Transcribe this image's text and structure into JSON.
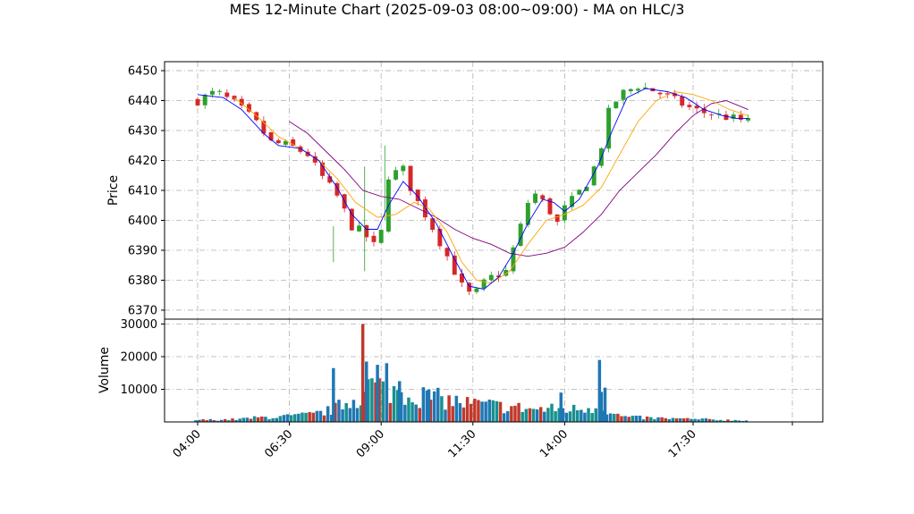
{
  "chart_data": {
    "type": "candlestick+volume",
    "title": "MES 12-Minute Chart (2025-09-03 08:00~09:00) - MA on HLC/3",
    "colors": {
      "up": "#2ca02c",
      "down": "#d62728",
      "ma_fast": "#0000ff",
      "ma_mid": "#ffa500",
      "ma_slow": "#800080",
      "vol_a": "#1f77b4",
      "vol_b": "#17908f",
      "vol_c": "#c0392b"
    },
    "price_panel": {
      "ylabel": "Price",
      "yticks": [
        6370,
        6380,
        6390,
        6400,
        6410,
        6420,
        6430,
        6440,
        6450
      ],
      "ylim": [
        6367,
        6453
      ],
      "grid": true
    },
    "volume_panel": {
      "ylabel": "Volume",
      "yticks": [
        10000,
        20000,
        30000
      ],
      "ylim": [
        0,
        31500
      ],
      "grid": true
    },
    "xticks": [
      "04:00",
      "06:30",
      "09:00",
      "11:30",
      "14:00",
      "17:30"
    ],
    "x_hours": [
      4.0,
      6.5,
      9.0,
      11.5,
      14.0,
      17.5
    ],
    "x_range_hours": [
      3.2,
      19.0
    ],
    "price_keypoints": [
      [
        4.0,
        6440
      ],
      [
        4.5,
        6443
      ],
      [
        5.0,
        6439
      ],
      [
        5.5,
        6434
      ],
      [
        6.0,
        6426
      ],
      [
        6.5,
        6425
      ],
      [
        7.0,
        6422
      ],
      [
        7.3,
        6416
      ],
      [
        7.8,
        6408
      ],
      [
        8.2,
        6398
      ],
      [
        8.5,
        6396
      ],
      [
        8.9,
        6390
      ],
      [
        9.0,
        6396
      ],
      [
        9.2,
        6415
      ],
      [
        9.6,
        6417
      ],
      [
        9.9,
        6408
      ],
      [
        10.3,
        6400
      ],
      [
        10.8,
        6388
      ],
      [
        11.2,
        6378
      ],
      [
        11.5,
        6374
      ],
      [
        11.7,
        6378
      ],
      [
        12.0,
        6381
      ],
      [
        12.4,
        6383
      ],
      [
        12.8,
        6398
      ],
      [
        13.1,
        6410
      ],
      [
        13.5,
        6405
      ],
      [
        13.8,
        6399
      ],
      [
        14.0,
        6404
      ],
      [
        14.3,
        6408
      ],
      [
        14.7,
        6414
      ],
      [
        15.0,
        6425
      ],
      [
        15.2,
        6436
      ],
      [
        15.5,
        6442
      ],
      [
        16.0,
        6445
      ],
      [
        16.5,
        6443
      ],
      [
        17.0,
        6440
      ],
      [
        17.5,
        6437
      ],
      [
        17.8,
        6436
      ],
      [
        18.2,
        6435
      ],
      [
        18.6,
        6434
      ],
      [
        19.0,
        6433
      ]
    ],
    "ma_fast": [
      [
        4.0,
        6442
      ],
      [
        4.7,
        6441
      ],
      [
        5.2,
        6437
      ],
      [
        5.8,
        6429
      ],
      [
        6.2,
        6425
      ],
      [
        6.8,
        6424
      ],
      [
        7.3,
        6420
      ],
      [
        7.8,
        6411
      ],
      [
        8.2,
        6402
      ],
      [
        8.6,
        6397
      ],
      [
        8.9,
        6397
      ],
      [
        9.2,
        6405
      ],
      [
        9.6,
        6413
      ],
      [
        10.0,
        6408
      ],
      [
        10.5,
        6399
      ],
      [
        11.0,
        6387
      ],
      [
        11.4,
        6378
      ],
      [
        11.8,
        6377
      ],
      [
        12.2,
        6381
      ],
      [
        12.6,
        6389
      ],
      [
        13.0,
        6399
      ],
      [
        13.4,
        6407
      ],
      [
        13.7,
        6406
      ],
      [
        14.0,
        6403
      ],
      [
        14.4,
        6407
      ],
      [
        14.9,
        6418
      ],
      [
        15.3,
        6430
      ],
      [
        15.7,
        6441
      ],
      [
        16.2,
        6444
      ],
      [
        16.8,
        6443
      ],
      [
        17.3,
        6441
      ],
      [
        17.8,
        6437
      ],
      [
        18.3,
        6435
      ],
      [
        18.7,
        6434
      ],
      [
        19.0,
        6434
      ]
    ],
    "ma_mid": [
      [
        5.0,
        6441
      ],
      [
        5.6,
        6435
      ],
      [
        6.2,
        6428
      ],
      [
        6.8,
        6424
      ],
      [
        7.3,
        6420
      ],
      [
        7.8,
        6414
      ],
      [
        8.3,
        6406
      ],
      [
        8.9,
        6401
      ],
      [
        9.4,
        6402
      ],
      [
        9.9,
        6406
      ],
      [
        10.3,
        6404
      ],
      [
        10.8,
        6396
      ],
      [
        11.2,
        6386
      ],
      [
        11.6,
        6380
      ],
      [
        12.0,
        6379
      ],
      [
        12.5,
        6383
      ],
      [
        13.0,
        6392
      ],
      [
        13.5,
        6400
      ],
      [
        14.0,
        6402
      ],
      [
        14.5,
        6405
      ],
      [
        15.0,
        6411
      ],
      [
        15.5,
        6422
      ],
      [
        16.0,
        6433
      ],
      [
        16.5,
        6440
      ],
      [
        17.0,
        6443
      ],
      [
        17.5,
        6442
      ],
      [
        18.0,
        6440
      ],
      [
        18.5,
        6437
      ],
      [
        19.0,
        6435
      ]
    ],
    "ma_slow": [
      [
        6.5,
        6433
      ],
      [
        7.0,
        6429
      ],
      [
        7.5,
        6423
      ],
      [
        8.0,
        6417
      ],
      [
        8.5,
        6410
      ],
      [
        9.0,
        6408
      ],
      [
        9.5,
        6407
      ],
      [
        10.0,
        6404
      ],
      [
        10.5,
        6401
      ],
      [
        11.0,
        6397
      ],
      [
        11.5,
        6394
      ],
      [
        12.0,
        6392
      ],
      [
        12.5,
        6389
      ],
      [
        13.0,
        6388
      ],
      [
        13.5,
        6389
      ],
      [
        14.0,
        6391
      ],
      [
        14.5,
        6396
      ],
      [
        15.0,
        6402
      ],
      [
        15.5,
        6410
      ],
      [
        16.0,
        6416
      ],
      [
        16.5,
        6422
      ],
      [
        17.0,
        6429
      ],
      [
        17.5,
        6435
      ],
      [
        18.0,
        6439
      ],
      [
        18.4,
        6440
      ],
      [
        18.8,
        6438
      ],
      [
        19.0,
        6437
      ]
    ],
    "volume_keypoints": [
      [
        3.2,
        500
      ],
      [
        4.0,
        600
      ],
      [
        5.0,
        800
      ],
      [
        5.8,
        1500
      ],
      [
        6.5,
        1800
      ],
      [
        7.2,
        2500
      ],
      [
        7.7,
        4000
      ],
      [
        8.0,
        6000
      ],
      [
        8.4,
        8000
      ],
      [
        8.7,
        12000
      ],
      [
        9.0,
        11000
      ],
      [
        9.4,
        10000
      ],
      [
        9.8,
        9000
      ],
      [
        10.3,
        8000
      ],
      [
        10.8,
        7000
      ],
      [
        11.3,
        6000
      ],
      [
        11.8,
        5500
      ],
      [
        12.3,
        5000
      ],
      [
        12.8,
        4500
      ],
      [
        13.3,
        4000
      ],
      [
        13.8,
        4200
      ],
      [
        14.2,
        4000
      ],
      [
        14.6,
        4500
      ],
      [
        15.0,
        5000
      ],
      [
        15.3,
        2500
      ],
      [
        15.7,
        1500
      ],
      [
        16.5,
        1200
      ],
      [
        17.5,
        900
      ],
      [
        18.5,
        600
      ],
      [
        19.0,
        500
      ]
    ],
    "volume_spikes": [
      [
        7.7,
        16500
      ],
      [
        8.5,
        30000
      ],
      [
        8.6,
        18500
      ],
      [
        8.9,
        17500
      ],
      [
        9.15,
        18000
      ],
      [
        9.5,
        12500
      ],
      [
        10.3,
        10000
      ],
      [
        13.9,
        9000
      ],
      [
        14.95,
        19000
      ],
      [
        15.1,
        10500
      ],
      [
        15.0,
        9200
      ]
    ]
  }
}
